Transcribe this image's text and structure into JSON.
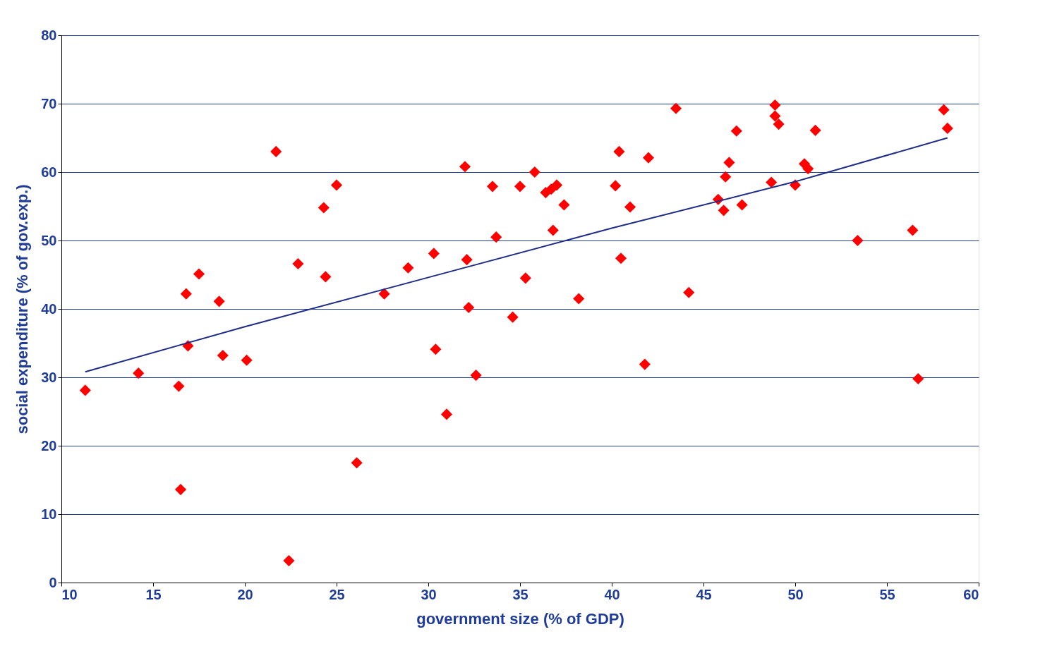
{
  "chart_data": {
    "type": "scatter",
    "xlabel": "government size (% of GDP)",
    "ylabel": "social expenditure (% of gov.exp.)",
    "xlim": [
      10,
      60
    ],
    "xticks": [
      10,
      15,
      20,
      25,
      30,
      35,
      40,
      45,
      50,
      55,
      60
    ],
    "ylim": [
      0,
      80
    ],
    "yticks": [
      0,
      10,
      20,
      30,
      40,
      50,
      60,
      70,
      80
    ],
    "grid": "y",
    "series": [
      {
        "marker": "diamond",
        "color": "#ff0000",
        "x": [
          11.3,
          14.2,
          16.4,
          16.5,
          16.8,
          16.9,
          17.5,
          18.6,
          18.8,
          20.1,
          21.7,
          22.4,
          22.9,
          24.3,
          24.4,
          25.0,
          26.1,
          27.6,
          28.9,
          30.3,
          30.4,
          31.0,
          32.0,
          32.1,
          32.2,
          32.6,
          33.5,
          33.7,
          34.6,
          35.0,
          35.3,
          35.8,
          36.4,
          36.7,
          36.8,
          37.0,
          37.4,
          38.2,
          40.2,
          40.4,
          40.5,
          41.0,
          41.8,
          42.0,
          43.5,
          44.2,
          45.8,
          46.1,
          46.2,
          46.4,
          46.8,
          47.1,
          48.7,
          48.9,
          48.9,
          49.1,
          50.0,
          50.5,
          50.7,
          51.1,
          53.4,
          56.4,
          56.7,
          58.1,
          58.3
        ],
        "values": [
          28.1,
          30.6,
          28.7,
          13.6,
          42.2,
          34.6,
          45.1,
          41.1,
          33.2,
          32.5,
          63.0,
          3.2,
          46.6,
          54.8,
          44.7,
          58.1,
          17.5,
          42.2,
          46.0,
          48.1,
          34.1,
          24.6,
          60.8,
          47.2,
          40.2,
          30.3,
          57.9,
          50.5,
          38.8,
          57.9,
          44.5,
          60.0,
          57.0,
          57.5,
          51.5,
          58.1,
          55.2,
          41.5,
          58.0,
          63.0,
          47.4,
          54.9,
          31.9,
          62.1,
          69.3,
          42.4,
          56.0,
          54.4,
          59.3,
          61.4,
          66.0,
          55.2,
          58.5,
          69.8,
          68.2,
          67.0,
          58.1,
          61.2,
          60.5,
          66.1,
          50.0,
          51.5,
          29.8,
          69.1,
          66.4
        ]
      },
      {
        "type": "line",
        "marker": "none",
        "line_style": "solid",
        "color": "#1f2d8a",
        "x": [
          11.3,
          20,
          30,
          40,
          50,
          58.3
        ],
        "values": [
          30.8,
          37.4,
          44.6,
          51.8,
          58.6,
          65.0
        ]
      }
    ]
  }
}
